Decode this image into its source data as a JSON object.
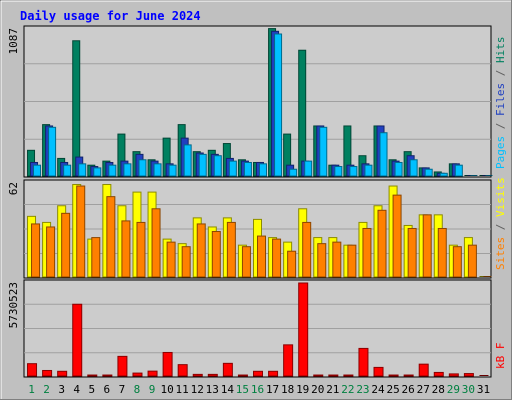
{
  "chart_data": {
    "type": "bar",
    "title": "Daily usage for June 2024",
    "days": [
      "1",
      "2",
      "3",
      "4",
      "5",
      "6",
      "7",
      "8",
      "9",
      "10",
      "11",
      "12",
      "13",
      "14",
      "15",
      "16",
      "17",
      "18",
      "19",
      "20",
      "21",
      "22",
      "23",
      "24",
      "25",
      "26",
      "27",
      "28",
      "29",
      "30",
      "31"
    ],
    "weekend_days": [
      "1",
      "2",
      "8",
      "9",
      "15",
      "16",
      "22",
      "23",
      "29",
      "30"
    ],
    "panels": [
      {
        "id": "pages-files-hits",
        "max_label": "1087",
        "ylim": [
          0,
          1087
        ],
        "side_labels": [
          {
            "text": "Pages",
            "color": "#00c0ff"
          },
          {
            "text": " / ",
            "color": "#606060"
          },
          {
            "text": "Files",
            "color": "#2040c0"
          },
          {
            "text": " / ",
            "color": "#606060"
          },
          {
            "text": "Hits",
            "color": "#008060"
          }
        ],
        "series": [
          {
            "name": "Hits",
            "color": "#008060",
            "values": [
              190,
              380,
              130,
              1000,
              80,
              110,
              310,
              180,
              120,
              280,
              380,
              180,
              190,
              240,
              120,
              100,
              1090,
              310,
              930,
              370,
              80,
              370,
              150,
              370,
              120,
              180,
              60,
              30,
              90,
              0,
              0
            ]
          },
          {
            "name": "Files",
            "color": "#2040c0",
            "values": [
              100,
              370,
              100,
              140,
              70,
              100,
              110,
              160,
              110,
              90,
              280,
              170,
              160,
              130,
              110,
              100,
              1070,
              80,
              110,
              370,
              80,
              80,
              90,
              370,
              110,
              150,
              60,
              20,
              90,
              0,
              0
            ]
          },
          {
            "name": "Pages",
            "color": "#00c0ff",
            "values": [
              80,
              360,
              80,
              90,
              60,
              80,
              90,
              120,
              90,
              80,
              230,
              160,
              150,
              110,
              100,
              90,
              1050,
              50,
              110,
              360,
              70,
              70,
              80,
              320,
              100,
              120,
              50,
              20,
              80,
              0,
              0
            ]
          }
        ]
      },
      {
        "id": "sites-visits",
        "max_label": "62",
        "ylim": [
          0,
          62
        ],
        "side_labels": [
          {
            "text": "Sites",
            "color": "#ff8000"
          },
          {
            "text": " / ",
            "color": "#606060"
          },
          {
            "text": "Visits",
            "color": "#ffff00"
          }
        ],
        "series": [
          {
            "name": "Visits",
            "color": "#ffff00",
            "values": [
              40,
              36,
              47,
              61,
              25,
              61,
              47,
              56,
              56,
              25,
              22,
              39,
              33,
              39,
              21,
              38,
              26,
              23,
              45,
              26,
              26,
              21,
              36,
              47,
              60,
              34,
              41,
              41,
              21,
              26,
              0
            ]
          },
          {
            "name": "Sites",
            "color": "#ff8000",
            "values": [
              35,
              33,
              42,
              60,
              26,
              53,
              37,
              36,
              45,
              23,
              20,
              35,
              30,
              36,
              20,
              27,
              25,
              17,
              36,
              22,
              23,
              21,
              32,
              44,
              54,
              32,
              41,
              32,
              20,
              21,
              0
            ]
          }
        ]
      },
      {
        "id": "kb-f",
        "max_label": "5730523",
        "ylim": [
          0,
          5730523
        ],
        "side_labels": [
          {
            "text": "kB F",
            "color": "#ff0000"
          }
        ],
        "series": [
          {
            "name": "kB F",
            "color": "#ff0000",
            "values": [
              760000,
              340000,
              290000,
              4420000,
              60000,
              60000,
              1210000,
              180000,
              300000,
              1450000,
              700000,
              100000,
              100000,
              780000,
              60000,
              290000,
              290000,
              1920000,
              5730523,
              60000,
              60000,
              60000,
              1700000,
              530000,
              60000,
              60000,
              730000,
              220000,
              130000,
              150000,
              0
            ]
          }
        ]
      }
    ]
  },
  "colors": {
    "background": "#c0c0c0",
    "plot_area": "#cccccc",
    "title": "#0000ff",
    "axis_text": "#000000",
    "day_weekday": "#000000",
    "day_weekend": "#008040"
  }
}
